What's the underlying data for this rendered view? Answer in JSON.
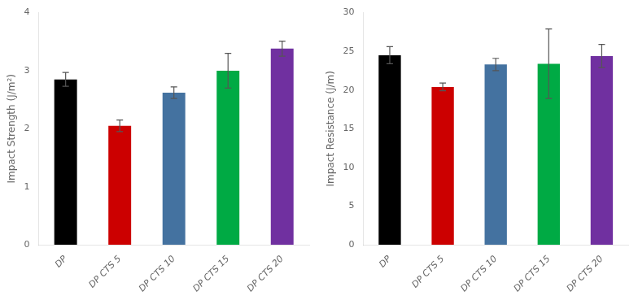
{
  "chart_data": [
    {
      "type": "bar",
      "categories": [
        "DP",
        "DP CTS 5",
        "DP CTS 10",
        "DP CTS 15",
        "DP CTS 20"
      ],
      "values": [
        2.85,
        2.05,
        2.62,
        3.0,
        3.38
      ],
      "errors": [
        0.12,
        0.1,
        0.1,
        0.3,
        0.13
      ],
      "colors": [
        "#000000",
        "#cc0000",
        "#4472a0",
        "#00aa44",
        "#7030a0"
      ],
      "ylabel": "Impact Strength (J/m²)",
      "ylim": [
        0,
        4
      ],
      "yticks": [
        0,
        1,
        2,
        3,
        4
      ],
      "grid": false
    },
    {
      "type": "bar",
      "categories": [
        "DP",
        "DP CTS 5",
        "DP CTS 10",
        "DP CTS 15",
        "DP CTS 20"
      ],
      "values": [
        24.5,
        20.4,
        23.3,
        23.4,
        24.4
      ],
      "errors": [
        1.1,
        0.5,
        0.8,
        4.5,
        1.5
      ],
      "colors": [
        "#000000",
        "#cc0000",
        "#4472a0",
        "#00aa44",
        "#7030a0"
      ],
      "ylabel": "Impact Resistance (J/m)",
      "ylim": [
        0,
        30
      ],
      "yticks": [
        0,
        5,
        10,
        15,
        20,
        25,
        30
      ],
      "grid": false
    }
  ]
}
